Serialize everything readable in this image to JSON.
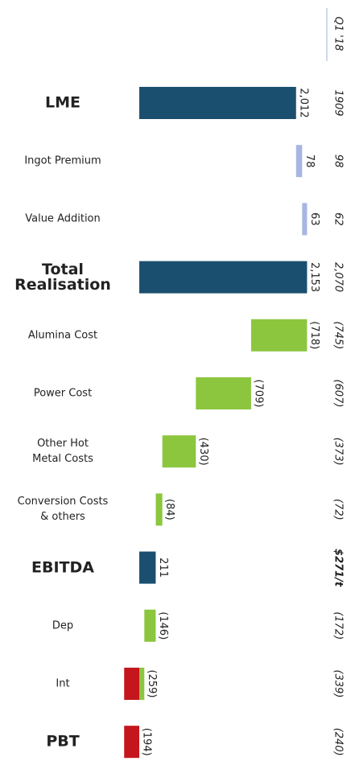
{
  "chart_data": {
    "type": "waterfall",
    "categories": [
      "LME",
      "Ingot Premium",
      "Value Addition",
      "Total Realisation",
      "Alumina Cost",
      "Power Cost",
      "Other Hot\nMetal Costs",
      "Conversion Costs\n& others",
      "EBITDA",
      "Dep",
      "Int",
      "PBT"
    ],
    "measure": [
      "absolute",
      "relative",
      "relative",
      "total",
      "relative",
      "relative",
      "relative",
      "relative",
      "total",
      "relative",
      "relative",
      "total"
    ],
    "values": [
      2012,
      78,
      63,
      2153,
      -718,
      -709,
      -430,
      -84,
      211,
      -146,
      -259,
      -194
    ],
    "value_labels": [
      "2,012",
      "78",
      "63",
      "2,153",
      "(718)",
      "(709)",
      "(430)",
      "(84)",
      "211",
      "(146)",
      "(259)",
      "(194)"
    ],
    "colors": {
      "total": "#1b4f6f",
      "increase": "#a7b6e2",
      "decrease": "#8cc63f",
      "below_zero": "#c4161c"
    },
    "comparison": {
      "header": "Q1 '18",
      "labels": [
        "1909",
        "98",
        "62",
        "2,070",
        "(745)",
        "(607)",
        "(373)",
        "(72)",
        "$271/t",
        "(172)",
        "(339)",
        "(240)"
      ]
    }
  }
}
